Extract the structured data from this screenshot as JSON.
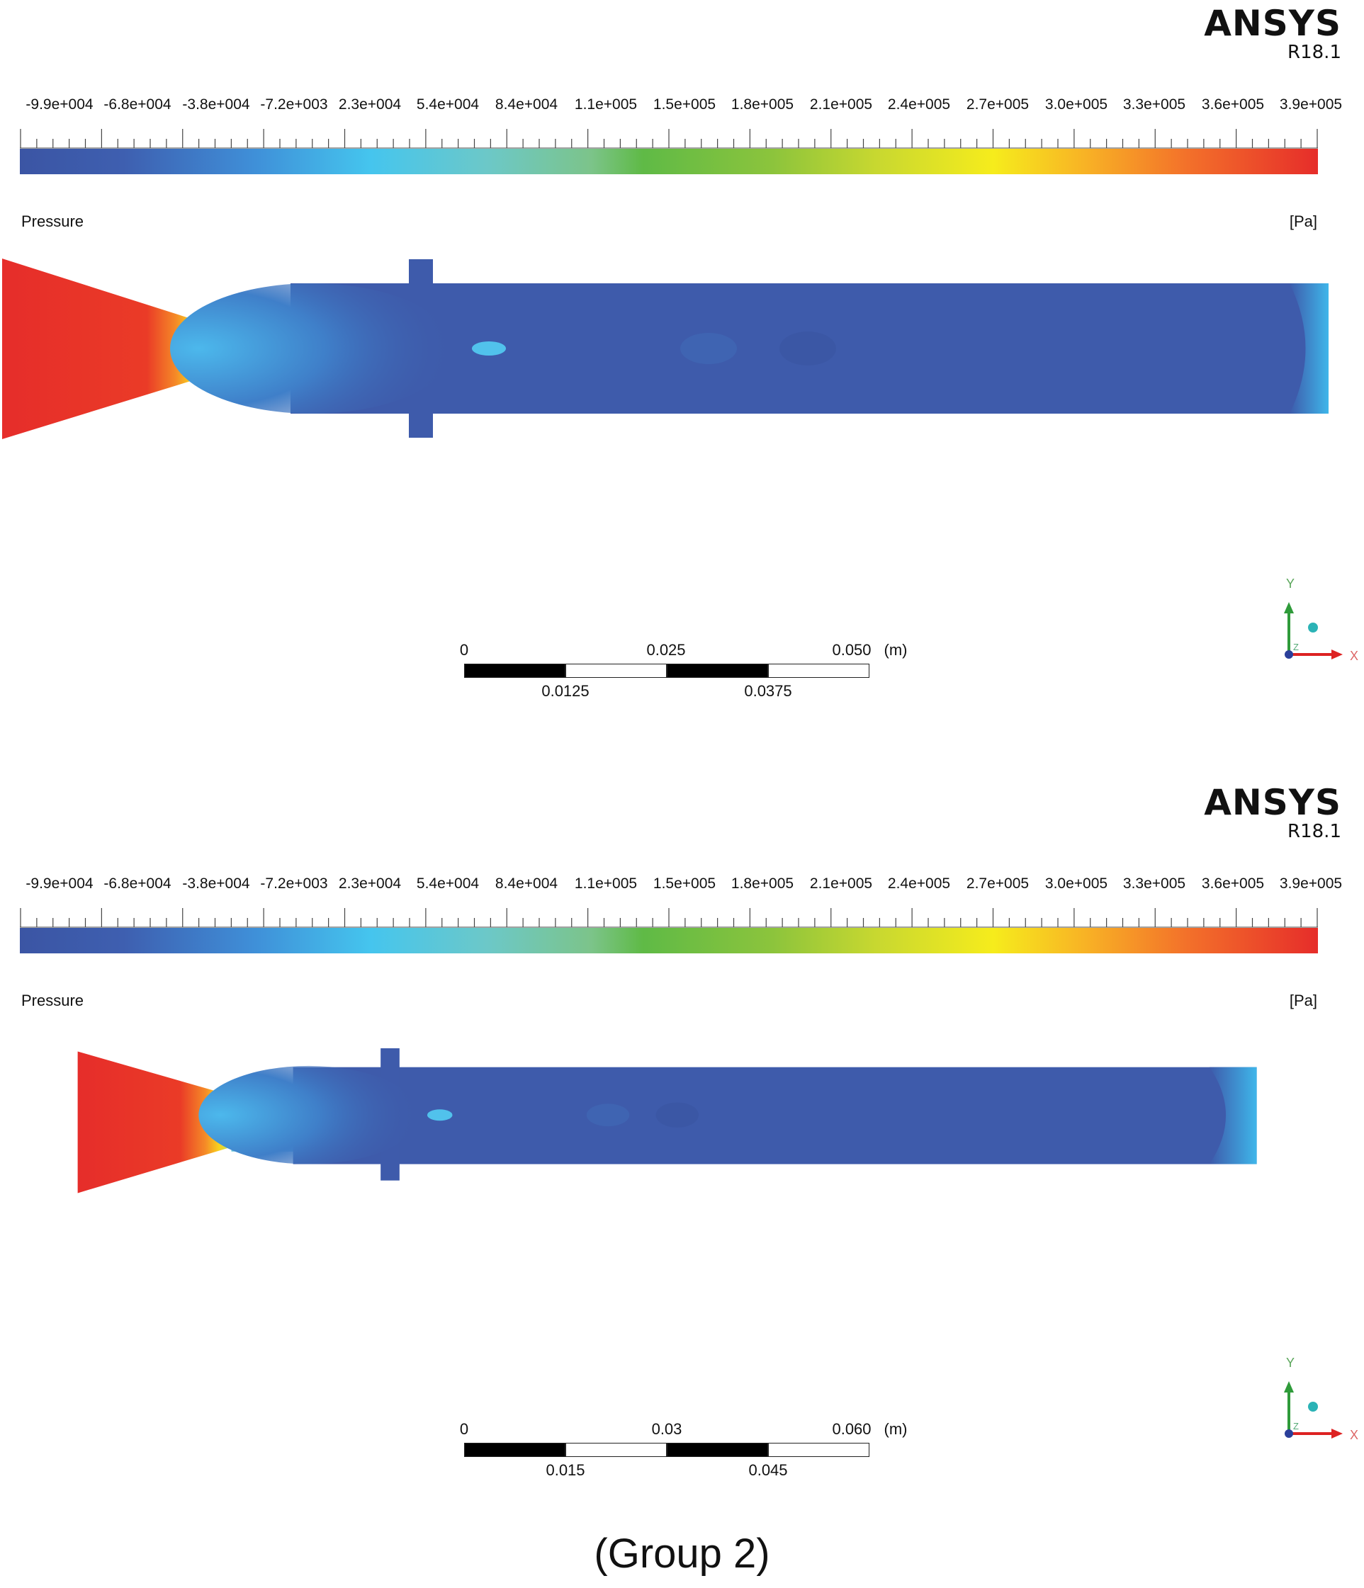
{
  "panels": [
    {
      "brand": {
        "name": "ANSYS",
        "version": "R18.1"
      },
      "legend_ticks": [
        "-9.9e+004",
        "-6.8e+004",
        "-3.8e+004",
        "-7.2e+003",
        "2.3e+004",
        "5.4e+004",
        "8.4e+004",
        "1.1e+005",
        "1.5e+005",
        "1.8e+005",
        "2.1e+005",
        "2.4e+005",
        "2.7e+005",
        "3.0e+005",
        "3.3e+005",
        "3.6e+005",
        "3.9e+005"
      ],
      "quantity": "Pressure",
      "unit": "[Pa]",
      "scale": {
        "zero": "0",
        "mid": "0.025",
        "end": "0.050",
        "unit": "(m)",
        "q1": "0.0125",
        "q3": "0.0375"
      },
      "axes": {
        "y": "Y",
        "x": "X",
        "z": "Z"
      }
    },
    {
      "brand": {
        "name": "ANSYS",
        "version": "R18.1"
      },
      "legend_ticks": [
        "-9.9e+004",
        "-6.8e+004",
        "-3.8e+004",
        "-7.2e+003",
        "2.3e+004",
        "5.4e+004",
        "8.4e+004",
        "1.1e+005",
        "1.5e+005",
        "1.8e+005",
        "2.1e+005",
        "2.4e+005",
        "2.7e+005",
        "3.0e+005",
        "3.3e+005",
        "3.6e+005",
        "3.9e+005"
      ],
      "quantity": "Pressure",
      "unit": "[Pa]",
      "scale": {
        "zero": "0",
        "mid": "0.03",
        "end": "0.060",
        "unit": "(m)",
        "q1": "0.015",
        "q3": "0.045"
      },
      "axes": {
        "y": "Y",
        "x": "X",
        "z": "Z"
      }
    }
  ],
  "caption": "(Group 2)",
  "colors": {
    "low": "#3b55a4",
    "mid": "#5fba46",
    "high": "#e62d2a"
  }
}
